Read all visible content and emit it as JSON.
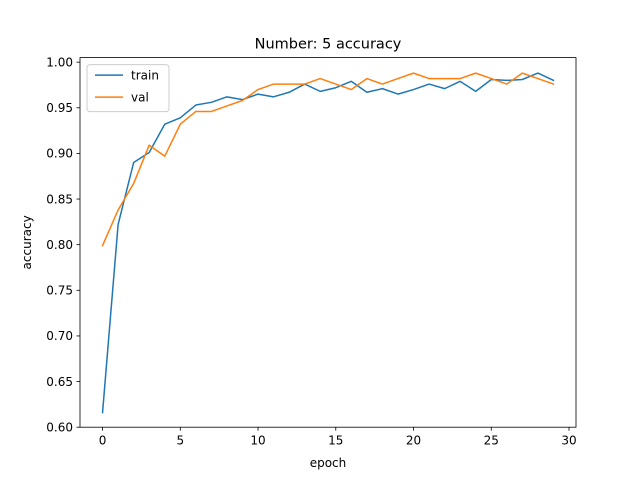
{
  "chart_data": {
    "type": "line",
    "title": "Number: 5 accuracy",
    "xlabel": "epoch",
    "ylabel": "accuracy",
    "xlim": [
      -1.45,
      30.45
    ],
    "ylim": [
      0.6,
      1.005
    ],
    "xticks": [
      0,
      5,
      10,
      15,
      20,
      25,
      30
    ],
    "yticks": [
      0.6,
      0.65,
      0.7,
      0.75,
      0.8,
      0.85,
      0.9,
      0.95,
      1.0
    ],
    "grid": false,
    "legend_position": "upper-left",
    "x": [
      0,
      1,
      2,
      3,
      4,
      5,
      6,
      7,
      8,
      9,
      10,
      11,
      12,
      13,
      14,
      15,
      16,
      17,
      18,
      19,
      20,
      21,
      22,
      23,
      24,
      25,
      26,
      27,
      28,
      29
    ],
    "series": [
      {
        "name": "train",
        "color": "#1f77b4",
        "values": [
          0.616,
          0.822,
          0.89,
          0.901,
          0.932,
          0.939,
          0.953,
          0.956,
          0.962,
          0.959,
          0.965,
          0.962,
          0.967,
          0.976,
          0.968,
          0.972,
          0.979,
          0.967,
          0.971,
          0.965,
          0.97,
          0.976,
          0.971,
          0.979,
          0.968,
          0.981,
          0.98,
          0.981,
          0.988,
          0.98
        ]
      },
      {
        "name": "val",
        "color": "#ff7f0e",
        "values": [
          0.799,
          0.838,
          0.867,
          0.909,
          0.897,
          0.932,
          0.946,
          0.946,
          0.952,
          0.958,
          0.97,
          0.976,
          0.976,
          0.976,
          0.982,
          0.976,
          0.97,
          0.982,
          0.976,
          0.982,
          0.988,
          0.982,
          0.982,
          0.982,
          0.988,
          0.982,
          0.976,
          0.988,
          0.982,
          0.976
        ]
      }
    ]
  }
}
